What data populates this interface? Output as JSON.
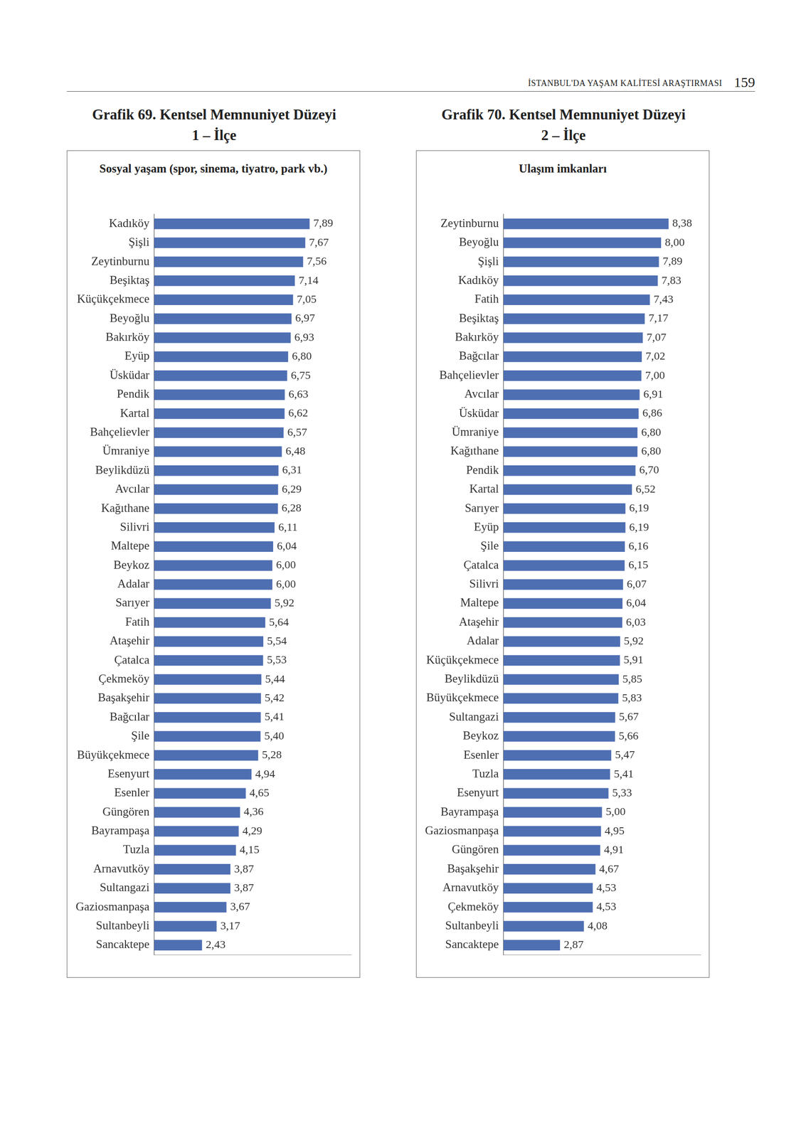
{
  "page": {
    "header": "İSTANBUL'DA YAŞAM KALİTESİ ARAŞTIRMASI",
    "page_number": "159"
  },
  "chart_data": [
    {
      "type": "bar",
      "orientation": "horizontal",
      "title": "Grafik 69. Kentsel Memnuniyet Düzeyi 1 – İlçe",
      "subtitle": "Sosyal yaşam (spor, sinema, tiyatro, park vb.)",
      "categories": [
        "Kadıköy",
        "Şişli",
        "Zeytinburnu",
        "Beşiktaş",
        "Küçükçekmece",
        "Beyoğlu",
        "Bakırköy",
        "Eyüp",
        "Üsküdar",
        "Pendik",
        "Kartal",
        "Bahçelievler",
        "Ümraniye",
        "Beylikdüzü",
        "Avcılar",
        "Kağıthane",
        "Silivri",
        "Maltepe",
        "Beykoz",
        "Adalar",
        "Sarıyer",
        "Fatih",
        "Ataşehir",
        "Çatalca",
        "Çekmeköy",
        "Başakşehir",
        "Bağcılar",
        "Şile",
        "Büyükçekmece",
        "Esenyurt",
        "Esenler",
        "Güngören",
        "Bayrampaşa",
        "Tuzla",
        "Arnavutköy",
        "Sultangazi",
        "Gaziosmanpaşa",
        "Sultanbeyli",
        "Sancaktepe"
      ],
      "values": [
        7.89,
        7.67,
        7.56,
        7.14,
        7.05,
        6.97,
        6.93,
        6.8,
        6.75,
        6.63,
        6.62,
        6.57,
        6.48,
        6.31,
        6.29,
        6.28,
        6.11,
        6.04,
        6.0,
        6.0,
        5.92,
        5.64,
        5.54,
        5.53,
        5.44,
        5.42,
        5.41,
        5.4,
        5.28,
        4.94,
        4.65,
        4.36,
        4.29,
        4.15,
        3.87,
        3.87,
        3.67,
        3.17,
        2.43
      ],
      "value_labels": [
        "7,89",
        "7,67",
        "7,56",
        "7,14",
        "7,05",
        "6,97",
        "6,93",
        "6,80",
        "6,75",
        "6,63",
        "6,62",
        "6,57",
        "6,48",
        "6,31",
        "6,29",
        "6,28",
        "6,11",
        "6,04",
        "6,00",
        "6,00",
        "5,92",
        "5,64",
        "5,54",
        "5,53",
        "5,44",
        "5,42",
        "5,41",
        "5,40",
        "5,28",
        "4,94",
        "4,65",
        "4,36",
        "4,29",
        "4,15",
        "3,87",
        "3,87",
        "3,67",
        "3,17",
        "2,43"
      ],
      "color": "#4f6fb3",
      "xlim": [
        0,
        10
      ],
      "grid": false,
      "data_labels": true,
      "tick_labels": "y"
    },
    {
      "type": "bar",
      "orientation": "horizontal",
      "title": "Grafik 70. Kentsel Memnuniyet Düzeyi 2 – İlçe",
      "subtitle": "Ulaşım imkanları",
      "categories": [
        "Zeytinburnu",
        "Beyoğlu",
        "Şişli",
        "Kadıköy",
        "Fatih",
        "Beşiktaş",
        "Bakırköy",
        "Bağcılar",
        "Bahçelievler",
        "Avcılar",
        "Üsküdar",
        "Ümraniye",
        "Kağıthane",
        "Pendik",
        "Kartal",
        "Sarıyer",
        "Eyüp",
        "Şile",
        "Çatalca",
        "Silivri",
        "Maltepe",
        "Ataşehir",
        "Adalar",
        "Küçükçekmece",
        "Beylikdüzü",
        "Büyükçekmece",
        "Sultangazi",
        "Beykoz",
        "Esenler",
        "Tuzla",
        "Esenyurt",
        "Bayrampaşa",
        "Gaziosmanpaşa",
        "Güngören",
        "Başakşehir",
        "Arnavutköy",
        "Çekmeköy",
        "Sultanbeyli",
        "Sancaktepe"
      ],
      "values": [
        8.38,
        8.0,
        7.89,
        7.83,
        7.43,
        7.17,
        7.07,
        7.02,
        7.0,
        6.91,
        6.86,
        6.8,
        6.8,
        6.7,
        6.52,
        6.19,
        6.19,
        6.16,
        6.15,
        6.07,
        6.04,
        6.03,
        5.92,
        5.91,
        5.85,
        5.83,
        5.67,
        5.66,
        5.47,
        5.41,
        5.33,
        5.0,
        4.95,
        4.91,
        4.67,
        4.53,
        4.53,
        4.08,
        2.87
      ],
      "value_labels": [
        "8,38",
        "8,00",
        "7,89",
        "7,83",
        "7,43",
        "7,17",
        "7,07",
        "7,02",
        "7,00",
        "6,91",
        "6,86",
        "6,80",
        "6,80",
        "6,70",
        "6,52",
        "6,19",
        "6,19",
        "6,16",
        "6,15",
        "6,07",
        "6,04",
        "6,03",
        "5,92",
        "5,91",
        "5,85",
        "5,83",
        "5,67",
        "5,66",
        "5,47",
        "5,41",
        "5,33",
        "5,00",
        "4,95",
        "4,91",
        "4,67",
        "4,53",
        "4,53",
        "4,08",
        "2,87"
      ],
      "color": "#4f6fb3",
      "xlim": [
        0,
        10
      ],
      "grid": false,
      "data_labels": true,
      "tick_labels": "y"
    }
  ]
}
